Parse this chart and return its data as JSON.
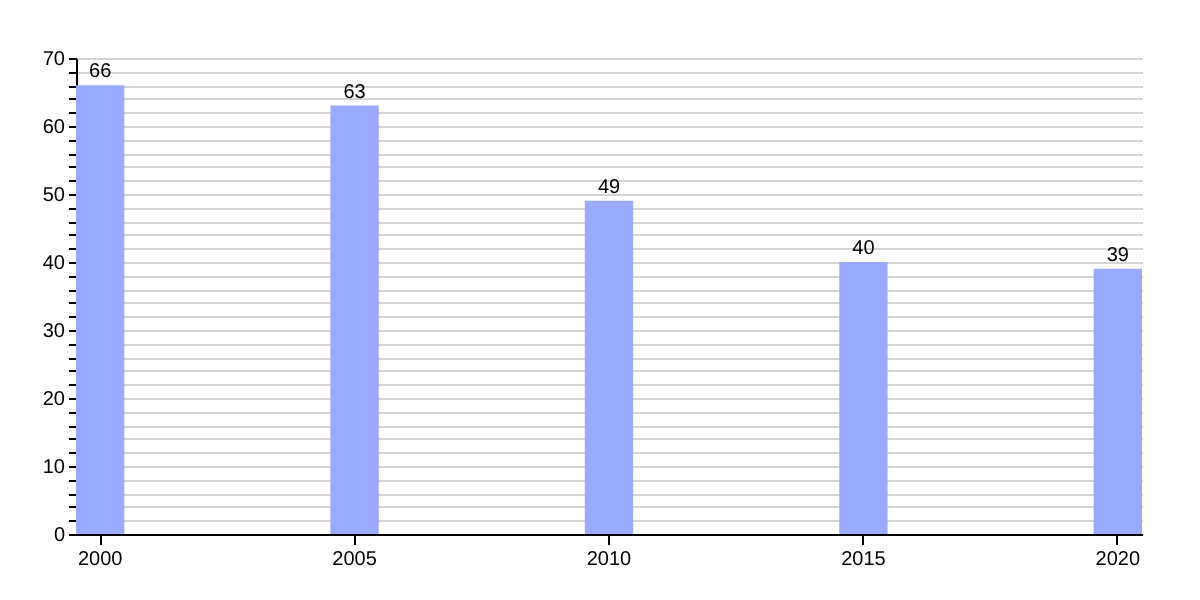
{
  "chart_data": {
    "type": "bar",
    "categories": [
      "2000",
      "2005",
      "2010",
      "2015",
      "2020"
    ],
    "values": [
      66,
      63,
      49,
      40,
      39
    ],
    "color": "#99aaff",
    "ylim": [
      0,
      70
    ],
    "yticks": [
      0,
      {
        "value": 2,
        "label": null
      },
      {
        "value": 4,
        "label": null
      },
      {
        "value": 6,
        "label": null
      },
      {
        "value": 8,
        "label": null
      },
      10,
      {
        "value": 12,
        "label": null
      },
      {
        "value": 14,
        "label": null
      },
      {
        "value": 16,
        "label": null
      },
      {
        "value": 18,
        "label": null
      },
      20,
      {
        "value": 22,
        "label": null
      },
      {
        "value": 24,
        "label": null
      },
      {
        "value": 26,
        "label": null
      },
      {
        "value": 28,
        "label": null
      },
      30,
      {
        "value": 32,
        "label": null
      },
      {
        "value": 34,
        "label": null
      },
      {
        "value": 36,
        "label": null
      },
      {
        "value": 38,
        "label": null
      },
      40,
      {
        "value": 42,
        "label": null
      },
      {
        "value": 44,
        "label": null
      },
      {
        "value": 46,
        "label": null
      },
      {
        "value": 48,
        "label": null
      },
      50,
      {
        "value": 52,
        "label": null
      },
      {
        "value": 54,
        "label": null
      },
      {
        "value": 56,
        "label": null
      },
      {
        "value": 58,
        "label": null
      },
      60,
      {
        "value": 62,
        "label": null
      },
      {
        "value": 64,
        "label": null
      },
      {
        "value": 66,
        "label": null
      },
      {
        "value": 68,
        "label": null
      },
      70
    ],
    "grid": true,
    "data_labels": true
  }
}
